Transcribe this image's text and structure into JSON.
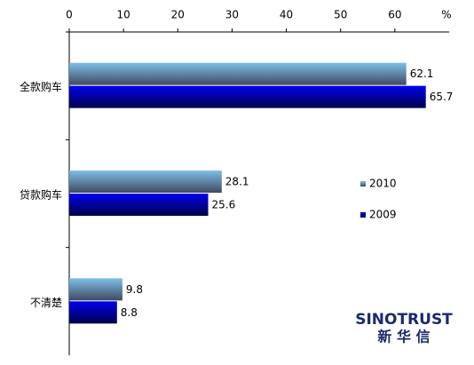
{
  "chart_data": {
    "type": "hbar",
    "categories": [
      "全款购车",
      "贷款购车",
      "不清楚"
    ],
    "series": [
      {
        "name": "2010",
        "color": "#7fbfe8",
        "values": [
          62.1,
          28.1,
          9.8
        ]
      },
      {
        "name": "2009",
        "color": "#0000ee",
        "values": [
          65.7,
          25.6,
          8.8
        ]
      }
    ],
    "xlim": [
      0,
      70
    ],
    "xticks": [
      0,
      10,
      20,
      30,
      40,
      50,
      60
    ],
    "xlabel": "%",
    "annotations": [
      "SINOTRUST",
      "新 华 信"
    ],
    "grid": false,
    "legend": "right"
  }
}
